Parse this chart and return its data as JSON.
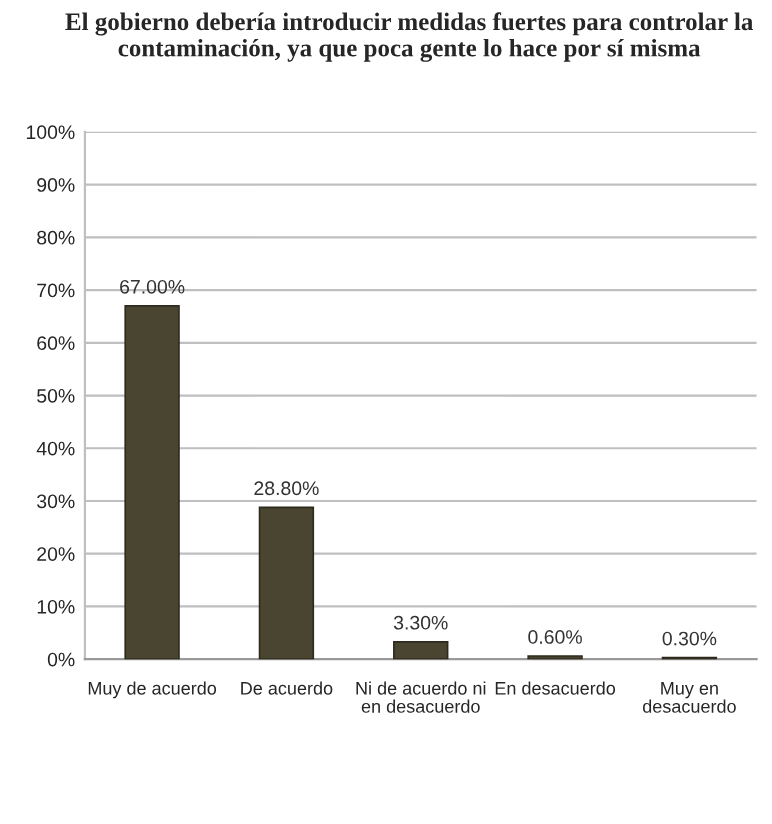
{
  "chart_data": {
    "type": "bar",
    "title": "El gobierno debería introducir medidas fuertes para controlar la contaminación, ya que poca gente lo hace por sí misma",
    "categories": [
      "Muy de acuerdo",
      "De acuerdo",
      "Ni de acuerdo ni\nen desacuerdo",
      "En desacuerdo",
      "Muy en\ndesacuerdo"
    ],
    "values": [
      67.0,
      28.8,
      3.3,
      0.6,
      0.3
    ],
    "value_labels": [
      "67.00%",
      "28.80%",
      "3.30%",
      "0.60%",
      "0.30%"
    ],
    "color": "#4a4531",
    "ylim": [
      0,
      100
    ],
    "yticks": [
      {
        "value": 0,
        "label": "0%"
      },
      {
        "value": 10,
        "label": "10%"
      },
      {
        "value": 20,
        "label": "20%"
      },
      {
        "value": 30,
        "label": "30%"
      },
      {
        "value": 40,
        "label": "40%"
      },
      {
        "value": 50,
        "label": "50%"
      },
      {
        "value": 60,
        "label": "60%"
      },
      {
        "value": 70,
        "label": "70%"
      },
      {
        "value": 80,
        "label": "80%"
      },
      {
        "value": 90,
        "label": "90%"
      },
      {
        "value": 100,
        "label": "100%"
      }
    ],
    "grid": "y",
    "legend": false
  }
}
